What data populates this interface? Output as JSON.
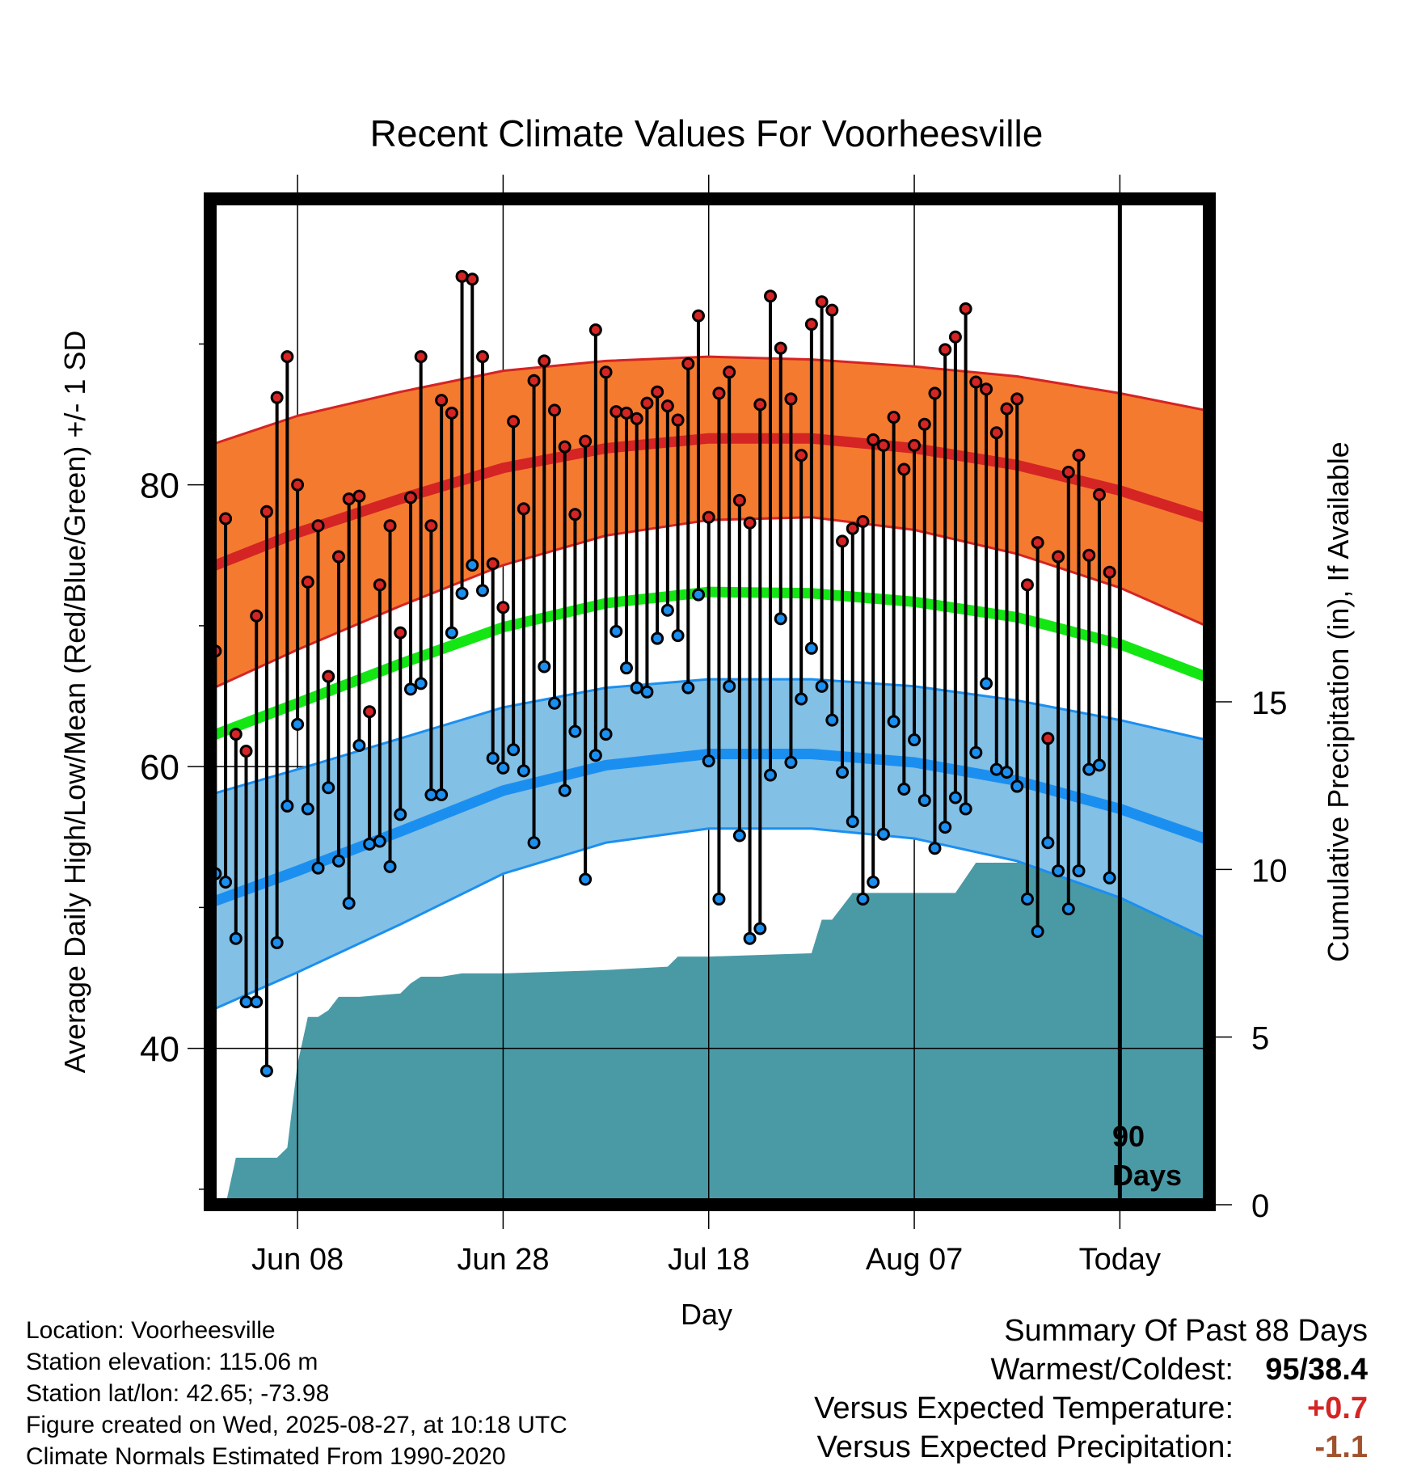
{
  "colors": {
    "high_band": "#f47a30",
    "high_line": "#d42424",
    "low_band": "#82c0e6",
    "low_line": "#1b8ff0",
    "mean_line": "#14e614",
    "precip_fill": "#4a9aa6",
    "high_marker": "#d42424",
    "low_marker": "#1b8ff0",
    "temp_up": "#d42424",
    "precip_down": "#a0522d"
  },
  "chart_data": {
    "type": "line",
    "title": "Recent Climate Values For Voorheesville",
    "xlabel": "Day",
    "ylabel_left": "Average Daily High/Low/Mean (Red/Blue/Green) +/- 1 SD",
    "ylabel_right": "Cumulative Precipitation (in), If Available",
    "y_left_ticks": [
      "80",
      "60",
      "40"
    ],
    "y_right_ticks": [
      "15",
      "10",
      "5",
      "0"
    ],
    "x_tick_labels": [
      "Jun 08",
      "Jun 28",
      "Jul 18",
      "Aug 07",
      "Today"
    ],
    "x_range_days": [
      -88.5,
      8.7
    ],
    "y_left_range": [
      28.9,
      100.3
    ],
    "y_right_range": [
      0,
      30
    ],
    "grid": true,
    "today_marker_label": [
      "90",
      "Days"
    ],
    "normals": {
      "x_days": [
        -89,
        -80,
        -70,
        -60,
        -50,
        -40,
        -30,
        -20,
        -10,
        0,
        9
      ],
      "high_mean": [
        74.0,
        76.6,
        79.0,
        81.2,
        82.6,
        83.3,
        83.3,
        82.6,
        81.4,
        79.6,
        77.5
      ],
      "high_sd": [
        8.7,
        8.3,
        7.6,
        6.9,
        6.2,
        5.8,
        5.6,
        5.8,
        6.3,
        6.9,
        7.7
      ],
      "mean": [
        62.0,
        64.5,
        67.3,
        69.9,
        71.6,
        72.4,
        72.3,
        71.7,
        70.6,
        68.7,
        66.2
      ],
      "low_mean": [
        50.2,
        52.6,
        55.4,
        58.3,
        60.1,
        60.9,
        60.9,
        60.3,
        59.0,
        57.0,
        54.7
      ],
      "low_sd": [
        7.7,
        7.2,
        6.6,
        5.9,
        5.5,
        5.3,
        5.3,
        5.4,
        5.7,
        6.3,
        7.1
      ]
    },
    "daily": {
      "x_days": [
        -88,
        -87,
        -86,
        -85,
        -84,
        -83,
        -82,
        -81,
        -80,
        -79,
        -78,
        -77,
        -76,
        -75,
        -74,
        -73,
        -72,
        -71,
        -70,
        -69,
        -68,
        -67,
        -66,
        -65,
        -64,
        -63,
        -62,
        -61,
        -60,
        -59,
        -58,
        -57,
        -56,
        -55,
        -54,
        -53,
        -52,
        -51,
        -50,
        -49,
        -48,
        -47,
        -46,
        -45,
        -44,
        -43,
        -42,
        -41,
        -40,
        -39,
        -38,
        -37,
        -36,
        -35,
        -34,
        -33,
        -32,
        -31,
        -30,
        -29,
        -28,
        -27,
        -26,
        -25,
        -24,
        -23,
        -22,
        -21,
        -20,
        -19,
        -18,
        -17,
        -16,
        -15,
        -14,
        -13,
        -12,
        -11,
        -10,
        -9,
        -8,
        -7,
        -6,
        -5,
        -4,
        -3,
        -2,
        -1
      ],
      "high": [
        68.2,
        77.6,
        62.3,
        61.1,
        70.7,
        78.1,
        86.2,
        89.1,
        80.0,
        73.1,
        77.1,
        66.4,
        74.9,
        79.0,
        79.2,
        63.9,
        72.9,
        77.1,
        69.5,
        79.1,
        89.1,
        77.1,
        86.0,
        85.1,
        94.8,
        94.6,
        89.1,
        74.4,
        71.3,
        84.5,
        78.3,
        87.4,
        88.8,
        85.3,
        82.7,
        77.9,
        83.1,
        91.0,
        88.0,
        85.2,
        85.1,
        84.7,
        85.8,
        86.6,
        85.6,
        84.6,
        88.6,
        92.0,
        77.7,
        86.5,
        88.0,
        78.9,
        77.3,
        85.7,
        93.4,
        89.7,
        86.1,
        82.1,
        91.4,
        93.0,
        92.4,
        76.0,
        76.9,
        77.4,
        83.2,
        82.8,
        84.8,
        81.1,
        82.8,
        84.3,
        86.5,
        89.6,
        90.5,
        92.5,
        87.3,
        86.8,
        83.7,
        85.4,
        86.1,
        72.9,
        75.9,
        62.0,
        74.9,
        80.9,
        82.1,
        75.0,
        79.3,
        73.8
      ],
      "low": [
        52.4,
        51.8,
        47.8,
        43.3,
        43.3,
        38.4,
        47.5,
        57.2,
        63.0,
        57.0,
        52.8,
        58.5,
        53.3,
        50.3,
        61.5,
        54.5,
        54.7,
        52.9,
        56.6,
        65.5,
        65.9,
        58.0,
        58.0,
        69.5,
        72.3,
        74.3,
        72.5,
        60.6,
        59.9,
        61.2,
        59.7,
        54.6,
        67.1,
        64.5,
        58.3,
        62.5,
        52.0,
        60.8,
        62.3,
        69.6,
        67.0,
        65.6,
        65.3,
        69.1,
        71.1,
        69.3,
        65.6,
        72.2,
        60.4,
        50.6,
        65.7,
        55.1,
        47.8,
        48.5,
        59.4,
        70.5,
        60.3,
        64.8,
        68.4,
        65.7,
        63.3,
        59.6,
        56.1,
        50.6,
        51.8,
        55.2,
        63.2,
        58.4,
        61.9,
        57.6,
        54.2,
        55.7,
        57.8,
        57.0,
        61.0,
        65.9,
        59.8,
        59.6,
        58.6,
        50.6,
        48.3,
        54.6,
        52.6,
        49.9,
        52.6,
        59.8,
        60.1,
        52.1
      ]
    },
    "precip_cumulative": {
      "x_days": [
        -88.5,
        -87,
        -86,
        -82,
        -81,
        -80,
        -79,
        -78,
        -77,
        -76,
        -74,
        -70,
        -69,
        -68,
        -66,
        -64,
        -60,
        -50,
        -44,
        -43,
        -40,
        -30,
        -29,
        -28,
        -26,
        -25,
        -16,
        -14,
        -11,
        -10,
        -8,
        -7,
        8.7
      ],
      "values": [
        0,
        0,
        1.4,
        1.4,
        1.7,
        4.2,
        5.6,
        5.6,
        5.8,
        6.2,
        6.2,
        6.3,
        6.6,
        6.8,
        6.8,
        6.9,
        6.9,
        7.0,
        7.1,
        7.4,
        7.4,
        7.5,
        8.5,
        8.5,
        9.3,
        9.3,
        9.3,
        10.2,
        10.2,
        10.2,
        11.2,
        11.3,
        11.3
      ]
    }
  },
  "info": {
    "location": "Location: Voorheesville",
    "elevation": "Station elevation: 115.06 m",
    "latlon": "Station lat/lon: 42.65; -73.98",
    "created": "Figure created on Wed, 2025-08-27, at 10:18 UTC",
    "normals": "Climate Normals Estimated From 1990-2020"
  },
  "summary": {
    "heading": "Summary Of Past 88 Days",
    "warmest_coldest_label": "Warmest/Coldest:",
    "warmest_coldest_value": "95/38.4",
    "temp_label": "Versus Expected Temperature:",
    "temp_value": "+0.7",
    "precip_label": "Versus Expected Precipitation:",
    "precip_value": "-1.1"
  }
}
